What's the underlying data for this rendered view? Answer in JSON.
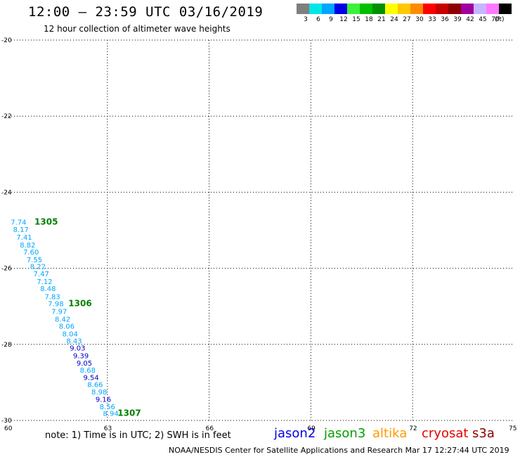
{
  "header": {
    "title": "12:00 – 23:59 UTC 03/16/2019",
    "subtitle": "12 hour collection of altimeter wave heights"
  },
  "legend": {
    "unit": "(ft)",
    "bins": [
      {
        "label": "3",
        "color": "#7f7f7f"
      },
      {
        "label": "6",
        "color": "#00e6e6"
      },
      {
        "label": "9",
        "color": "#00a6ff"
      },
      {
        "label": "12",
        "color": "#0000e6"
      },
      {
        "label": "15",
        "color": "#3cf03c"
      },
      {
        "label": "18",
        "color": "#00c000"
      },
      {
        "label": "21",
        "color": "#009000"
      },
      {
        "label": "24",
        "color": "#ffff00"
      },
      {
        "label": "27",
        "color": "#ffc800"
      },
      {
        "label": "30",
        "color": "#ff8c00"
      },
      {
        "label": "33",
        "color": "#ff0000"
      },
      {
        "label": "36",
        "color": "#c80000"
      },
      {
        "label": "39",
        "color": "#8c0000"
      },
      {
        "label": "42",
        "color": "#a000a0"
      },
      {
        "label": "45",
        "color": "#c8b4ff"
      },
      {
        "label": "70",
        "color": "#ff78ff"
      },
      {
        "label": "",
        "color": "#000000"
      }
    ]
  },
  "map": {
    "lon_range": [
      60,
      75
    ],
    "lat_range": [
      -30,
      -20
    ],
    "lon_ticks": [
      "60",
      "63",
      "66",
      "69",
      "72",
      "75"
    ],
    "lat_ticks": [
      "-20",
      "-22",
      "-24",
      "-26",
      "-28",
      "-30"
    ]
  },
  "chart_data": {
    "type": "scatter",
    "observations": [
      {
        "lon": 60.38,
        "lat": -24.85,
        "value": "7.74",
        "color": "#00a6ff"
      },
      {
        "lon": 60.45,
        "lat": -25.05,
        "value": "8.17",
        "color": "#00a6ff"
      },
      {
        "lon": 60.55,
        "lat": -25.25,
        "value": "7.41",
        "color": "#00a6ff"
      },
      {
        "lon": 60.65,
        "lat": -25.45,
        "value": "8.82",
        "color": "#00a6ff"
      },
      {
        "lon": 60.75,
        "lat": -25.64,
        "value": "7.60",
        "color": "#00a6ff"
      },
      {
        "lon": 60.85,
        "lat": -25.84,
        "value": "7.55",
        "color": "#00a6ff"
      },
      {
        "lon": 60.95,
        "lat": -26.02,
        "value": "8.22",
        "color": "#00a6ff"
      },
      {
        "lon": 61.05,
        "lat": -26.21,
        "value": "7.47",
        "color": "#00a6ff"
      },
      {
        "lon": 61.15,
        "lat": -26.41,
        "value": "7.12",
        "color": "#00a6ff"
      },
      {
        "lon": 61.25,
        "lat": -26.6,
        "value": "8.48",
        "color": "#00a6ff"
      },
      {
        "lon": 61.38,
        "lat": -26.81,
        "value": "7.83",
        "color": "#00a6ff"
      },
      {
        "lon": 61.48,
        "lat": -27.0,
        "value": "7.98",
        "color": "#00a6ff"
      },
      {
        "lon": 61.58,
        "lat": -27.2,
        "value": "7.97",
        "color": "#00a6ff"
      },
      {
        "lon": 61.68,
        "lat": -27.4,
        "value": "8.42",
        "color": "#00a6ff"
      },
      {
        "lon": 61.8,
        "lat": -27.59,
        "value": "8.06",
        "color": "#00a6ff"
      },
      {
        "lon": 61.9,
        "lat": -27.79,
        "value": "8.04",
        "color": "#00a6ff"
      },
      {
        "lon": 62.02,
        "lat": -27.98,
        "value": "8.43",
        "color": "#00a6ff"
      },
      {
        "lon": 62.12,
        "lat": -28.16,
        "value": "9.03",
        "color": "#0000c8"
      },
      {
        "lon": 62.22,
        "lat": -28.36,
        "value": "9.39",
        "color": "#0000c8"
      },
      {
        "lon": 62.32,
        "lat": -28.56,
        "value": "9.05",
        "color": "#0000c8"
      },
      {
        "lon": 62.42,
        "lat": -28.74,
        "value": "8.68",
        "color": "#00a6ff"
      },
      {
        "lon": 62.52,
        "lat": -28.94,
        "value": "9.54",
        "color": "#0000c8"
      },
      {
        "lon": 62.64,
        "lat": -29.12,
        "value": "8.66",
        "color": "#00a6ff"
      },
      {
        "lon": 62.76,
        "lat": -29.32,
        "value": "8.98",
        "color": "#00a6ff"
      },
      {
        "lon": 62.88,
        "lat": -29.51,
        "value": "9.16",
        "color": "#0000c8"
      },
      {
        "lon": 63.0,
        "lat": -29.7,
        "value": "8.56",
        "color": "#00a6ff"
      },
      {
        "lon": 63.1,
        "lat": -29.88,
        "value": "8.94",
        "color": "#00a6ff"
      }
    ],
    "time_labels": [
      {
        "lon": 60.85,
        "lat": -24.85,
        "text": "1305"
      },
      {
        "lon": 61.85,
        "lat": -27.0,
        "text": "1306"
      },
      {
        "lon": 63.3,
        "lat": -29.88,
        "text": "1307"
      }
    ]
  },
  "footer": {
    "note": "note:  1) Time is in UTC;  2) SWH is in feet",
    "satellites": [
      {
        "name": "jason2",
        "color": "#0000e6"
      },
      {
        "name": "jason3",
        "color": "#00a000"
      },
      {
        "name": "altika",
        "color": "#ff9900"
      },
      {
        "name": "cryosat",
        "color": "#e60000"
      },
      {
        "name": "s3a",
        "color": "#8c0000"
      }
    ],
    "credit": "NOAA/NESDIS Center for Satellite Applications and Research     Mar 17 12:27:44 UTC 2019"
  }
}
